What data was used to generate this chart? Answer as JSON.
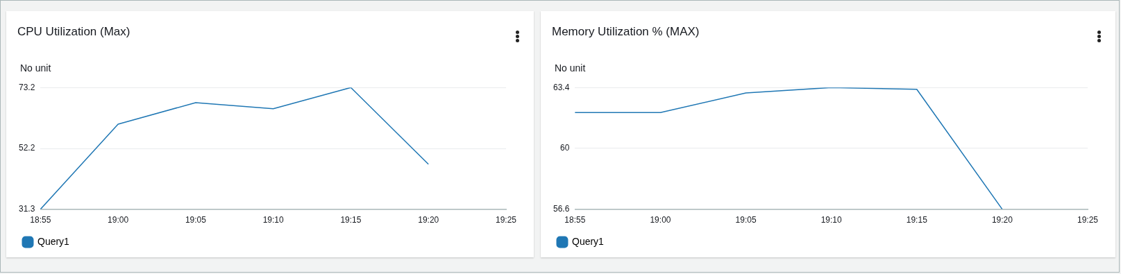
{
  "chart_data": [
    {
      "type": "line",
      "title": "CPU Utilization (Max)",
      "ylabel": "No unit",
      "categories": [
        "18:55",
        "19:00",
        "19:05",
        "19:10",
        "19:15",
        "19:20",
        "19:25"
      ],
      "series": [
        {
          "name": "Query1",
          "color": "#1f77b4",
          "values": [
            31.3,
            60.6,
            68.0,
            65.9,
            73.2,
            46.8,
            null
          ]
        }
      ],
      "ylim": [
        31.3,
        73.2
      ],
      "yticks": [
        31.3,
        52.2,
        73.2
      ],
      "grid": "y",
      "legend": "bottom left",
      "marker": "none",
      "line_style": "solid"
    },
    {
      "type": "line",
      "title": "Memory Utilization % (MAX)",
      "ylabel": "No unit",
      "categories": [
        "18:55",
        "19:00",
        "19:05",
        "19:10",
        "19:15",
        "19:20",
        "19:25"
      ],
      "series": [
        {
          "name": "Query1",
          "color": "#1f77b4",
          "values": [
            62.0,
            62.0,
            63.1,
            63.4,
            63.3,
            56.6,
            null
          ]
        }
      ],
      "ylim": [
        56.6,
        63.4
      ],
      "yticks": [
        56.6,
        60,
        63.4
      ],
      "grid": "y",
      "legend": "bottom left",
      "marker": "none",
      "line_style": "solid"
    }
  ]
}
